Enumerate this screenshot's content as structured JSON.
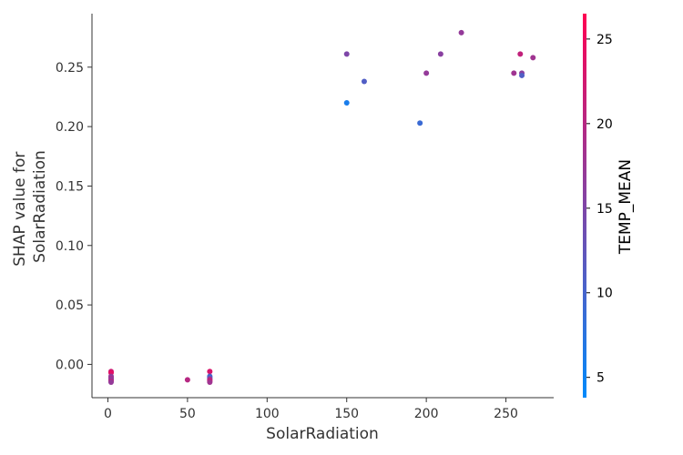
{
  "chart_data": {
    "type": "scatter",
    "xlabel": "SolarRadiation",
    "ylabel_lines": [
      "SHAP value for",
      "SolarRadiation"
    ],
    "xlim": [
      -10,
      280
    ],
    "ylim": [
      -0.028,
      0.295
    ],
    "x_ticks": [
      {
        "value": 0,
        "label": "0"
      },
      {
        "value": 50,
        "label": "50"
      },
      {
        "value": 100,
        "label": "100"
      },
      {
        "value": 150,
        "label": "150"
      },
      {
        "value": 200,
        "label": "200"
      },
      {
        "value": 250,
        "label": "250"
      }
    ],
    "y_ticks": [
      {
        "value": 0.0,
        "label": "0.00"
      },
      {
        "value": 0.05,
        "label": "0.05"
      },
      {
        "value": 0.1,
        "label": "0.10"
      },
      {
        "value": 0.15,
        "label": "0.15"
      },
      {
        "value": 0.2,
        "label": "0.20"
      },
      {
        "value": 0.25,
        "label": "0.25"
      }
    ],
    "grid": false,
    "colorbar": {
      "label": "TEMP_MEAN",
      "range": [
        3.8,
        26.5
      ],
      "low_color": "#008afb",
      "high_color": "#ff0052",
      "ticks": [
        {
          "value": 5,
          "label": "5"
        },
        {
          "value": 10,
          "label": "10"
        },
        {
          "value": 15,
          "label": "15"
        },
        {
          "value": 20,
          "label": "20"
        },
        {
          "value": 25,
          "label": "25"
        }
      ]
    },
    "points": [
      {
        "x": 2,
        "y": -0.006,
        "c": 22
      },
      {
        "x": 2,
        "y": -0.007,
        "c": 24
      },
      {
        "x": 2,
        "y": -0.01,
        "c": 18
      },
      {
        "x": 2,
        "y": -0.011,
        "c": 16
      },
      {
        "x": 2,
        "y": -0.012,
        "c": 20
      },
      {
        "x": 2,
        "y": -0.013,
        "c": 15
      },
      {
        "x": 2,
        "y": -0.014,
        "c": 21
      },
      {
        "x": 2,
        "y": -0.015,
        "c": 17
      },
      {
        "x": 50,
        "y": -0.013,
        "c": 20
      },
      {
        "x": 64,
        "y": -0.006,
        "c": 23
      },
      {
        "x": 64,
        "y": -0.01,
        "c": 12
      },
      {
        "x": 64,
        "y": -0.011,
        "c": 9
      },
      {
        "x": 64,
        "y": -0.012,
        "c": 16
      },
      {
        "x": 64,
        "y": -0.013,
        "c": 19
      },
      {
        "x": 64,
        "y": -0.014,
        "c": 22
      },
      {
        "x": 64,
        "y": -0.015,
        "c": 18
      },
      {
        "x": 150,
        "y": 0.261,
        "c": 15
      },
      {
        "x": 150,
        "y": 0.22,
        "c": 6
      },
      {
        "x": 161,
        "y": 0.238,
        "c": 11
      },
      {
        "x": 196,
        "y": 0.203,
        "c": 9
      },
      {
        "x": 200,
        "y": 0.245,
        "c": 17
      },
      {
        "x": 209,
        "y": 0.261,
        "c": 16
      },
      {
        "x": 222,
        "y": 0.279,
        "c": 17
      },
      {
        "x": 255,
        "y": 0.245,
        "c": 18
      },
      {
        "x": 259,
        "y": 0.261,
        "c": 21
      },
      {
        "x": 260,
        "y": 0.245,
        "c": 16
      },
      {
        "x": 260,
        "y": 0.243,
        "c": 11
      },
      {
        "x": 267,
        "y": 0.258,
        "c": 18
      }
    ]
  }
}
